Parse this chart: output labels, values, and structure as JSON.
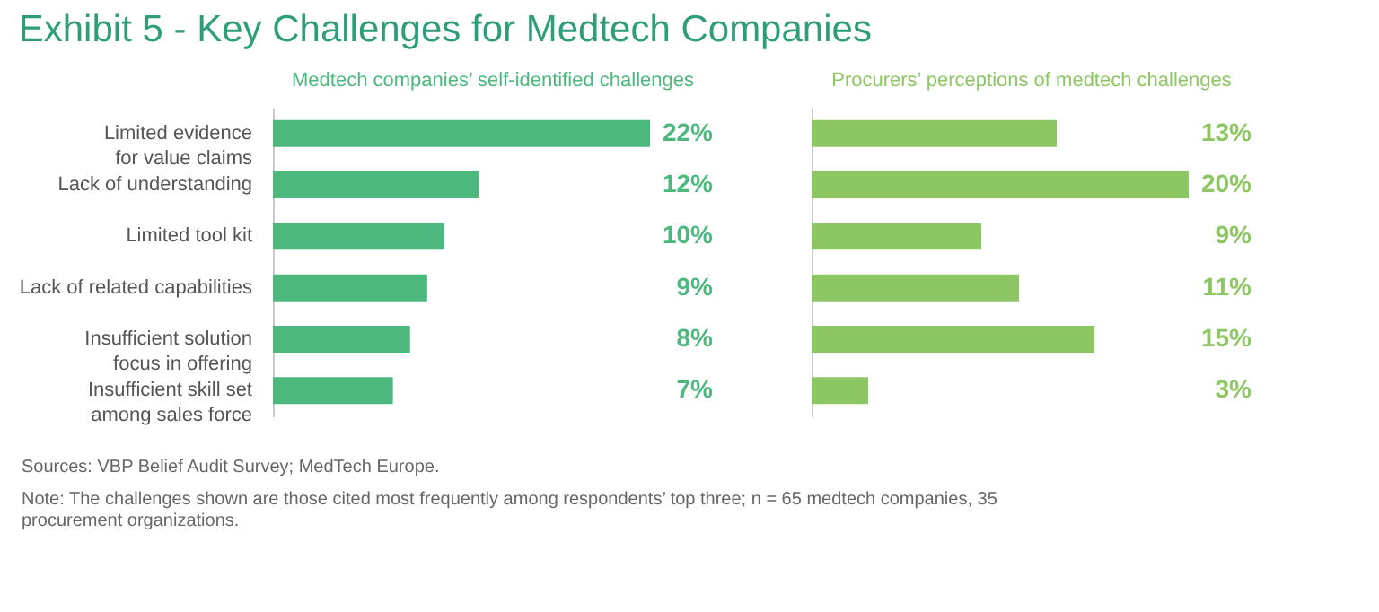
{
  "chart_data": [
    {
      "type": "bar",
      "orientation": "horizontal",
      "title": "Exhibit 5 - Key Challenges for Medtech Companies",
      "subtitle": "Medtech companies’ self-identified challenges",
      "categories": [
        "Limited evidence\nfor value claims",
        "Lack of understanding",
        "Limited tool kit",
        "Lack of related capabilities",
        "Insufficient solution\nfocus in offering",
        "Insufficient skill set\namong sales force"
      ],
      "values": [
        22,
        12,
        10,
        9,
        8,
        7
      ],
      "color": "#4cb87e",
      "value_labels": [
        "22%",
        "12%",
        "10%",
        "9%",
        "8%",
        "7%"
      ],
      "grid": false,
      "annotations": [
        "Sources: VBP Belief Audit Survey; MedTech Europe.",
        "Note: The challenges shown are those cited most frequently among respondents’ top three; n = 65 medtech companies, 35 procurement organizations."
      ]
    },
    {
      "type": "bar",
      "orientation": "horizontal",
      "subtitle": "Procurers’ perceptions of medtech challenges",
      "categories": [
        null,
        null,
        null,
        null,
        null,
        null
      ],
      "values": [
        13,
        20,
        9,
        11,
        15,
        3
      ],
      "color": "#8cc763",
      "value_labels": [
        "13%",
        "20%",
        "9%",
        "11%",
        "15%",
        "3%"
      ],
      "grid": false
    }
  ]
}
